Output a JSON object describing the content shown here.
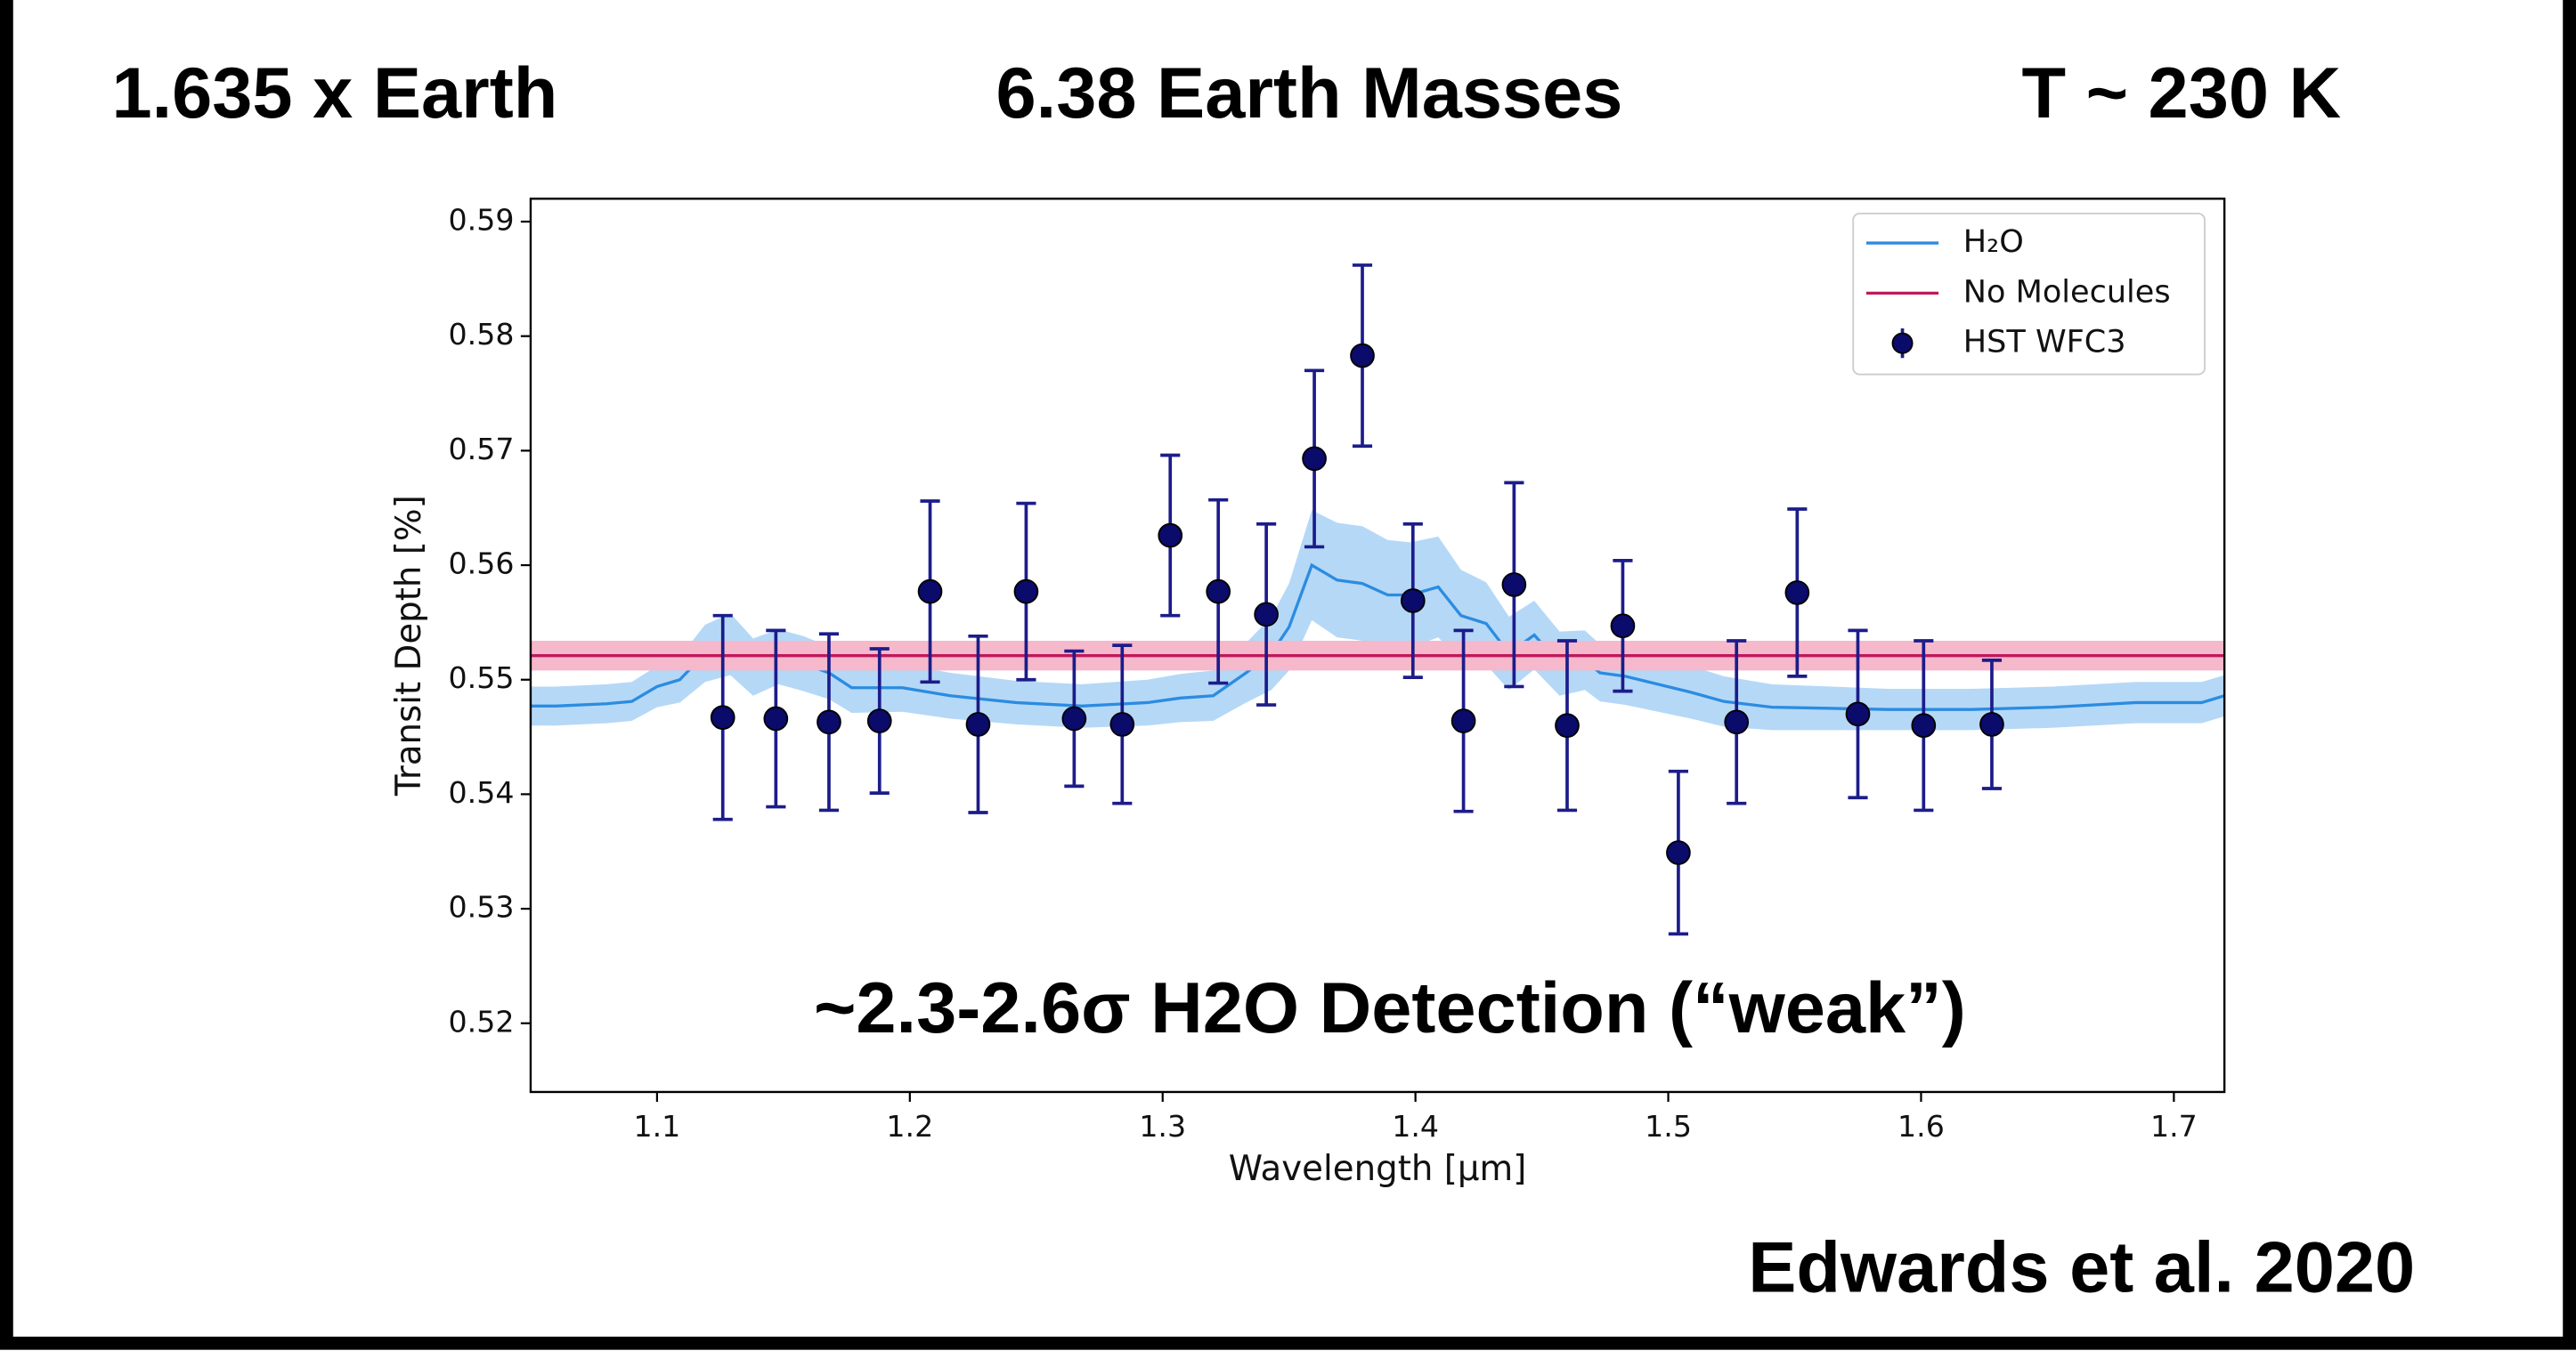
{
  "slide": {
    "stats": [
      "1.635 x Earth",
      "6.38 Earth Masses",
      "T ~ 230 K"
    ],
    "citation": "Edwards et al. 2020"
  },
  "chart_data": {
    "type": "scatter",
    "annotation": "~2.3-2.6σ H2O Detection (“weak”)",
    "x_label": "Wavelength [μm]",
    "y_label": "Transit Depth [%]",
    "xlim": [
      1.05,
      1.72
    ],
    "ylim": [
      0.514,
      0.592
    ],
    "xticks": [
      1.1,
      1.2,
      1.3,
      1.4,
      1.5,
      1.6,
      1.7
    ],
    "yticks": [
      0.52,
      0.53,
      0.54,
      0.55,
      0.56,
      0.57,
      0.58,
      0.59
    ],
    "legend": "upper right",
    "series": [
      {
        "name": "H₂O",
        "type": "line",
        "color": "#2b8ce0",
        "band_color": "#b5d8f7",
        "x": [
          1.05,
          1.06,
          1.08,
          1.09,
          1.1,
          1.109,
          1.119,
          1.129,
          1.138,
          1.148,
          1.158,
          1.168,
          1.177,
          1.197,
          1.216,
          1.242,
          1.268,
          1.294,
          1.307,
          1.32,
          1.333,
          1.343,
          1.35,
          1.359,
          1.369,
          1.379,
          1.389,
          1.398,
          1.409,
          1.418,
          1.428,
          1.437,
          1.447,
          1.457,
          1.467,
          1.473,
          1.483,
          1.496,
          1.509,
          1.522,
          1.541,
          1.587,
          1.62,
          1.652,
          1.685,
          1.711,
          1.72
        ],
        "values": [
          0.5477,
          0.5477,
          0.5479,
          0.5481,
          0.5494,
          0.55,
          0.5523,
          0.5531,
          0.5511,
          0.552,
          0.5514,
          0.5506,
          0.5493,
          0.5493,
          0.5486,
          0.548,
          0.5477,
          0.548,
          0.5484,
          0.5486,
          0.5506,
          0.5523,
          0.5546,
          0.56,
          0.5587,
          0.5584,
          0.5574,
          0.5574,
          0.5581,
          0.5556,
          0.5549,
          0.5523,
          0.5539,
          0.5514,
          0.5517,
          0.5506,
          0.5503,
          0.5496,
          0.5489,
          0.5481,
          0.5476,
          0.5474,
          0.5474,
          0.5476,
          0.548,
          0.548,
          0.5486
        ],
        "errors": [
          0.0017,
          0.0017,
          0.0017,
          0.0017,
          0.0018,
          0.002,
          0.0025,
          0.0027,
          0.0025,
          0.0024,
          0.0024,
          0.0023,
          0.0022,
          0.0021,
          0.002,
          0.0019,
          0.0019,
          0.002,
          0.0021,
          0.0022,
          0.0026,
          0.0032,
          0.0038,
          0.0048,
          0.005,
          0.005,
          0.0048,
          0.0046,
          0.0044,
          0.004,
          0.0036,
          0.0032,
          0.003,
          0.0028,
          0.0026,
          0.0025,
          0.0025,
          0.0024,
          0.0023,
          0.0022,
          0.002,
          0.0018,
          0.0018,
          0.0018,
          0.0018,
          0.0018,
          0.0018
        ]
      },
      {
        "name": "No Molecules",
        "type": "line",
        "color": "#c2185b",
        "band_color": "#f6b8cb",
        "x": [
          1.05,
          1.72
        ],
        "values": [
          0.5521,
          0.5521
        ],
        "errors": [
          0.0013,
          0.0013
        ]
      },
      {
        "name": "HST WFC3",
        "type": "scatter",
        "color": "#0b0b6b",
        "error_color": "#1c1c8a",
        "x": [
          1.126,
          1.147,
          1.168,
          1.188,
          1.208,
          1.227,
          1.246,
          1.265,
          1.284,
          1.303,
          1.322,
          1.341,
          1.36,
          1.379,
          1.399,
          1.419,
          1.439,
          1.46,
          1.482,
          1.504,
          1.527,
          1.551,
          1.575,
          1.601,
          1.628
        ],
        "values": [
          0.5467,
          0.5466,
          0.5463,
          0.5464,
          0.5577,
          0.5461,
          0.5577,
          0.5466,
          0.5461,
          0.5626,
          0.5577,
          0.5557,
          0.5693,
          0.5783,
          0.5569,
          0.5464,
          0.5583,
          0.546,
          0.5547,
          0.5349,
          0.5463,
          0.5576,
          0.547,
          0.546,
          0.5461
        ],
        "errors": [
          0.0089,
          0.0077,
          0.0077,
          0.0063,
          0.0079,
          0.0077,
          0.0077,
          0.0059,
          0.0069,
          0.007,
          0.008,
          0.0079,
          0.0077,
          0.0079,
          0.0067,
          0.0079,
          0.0089,
          0.0074,
          0.0057,
          0.0071,
          0.0071,
          0.0073,
          0.0073,
          0.0074,
          0.0056
        ]
      }
    ]
  }
}
